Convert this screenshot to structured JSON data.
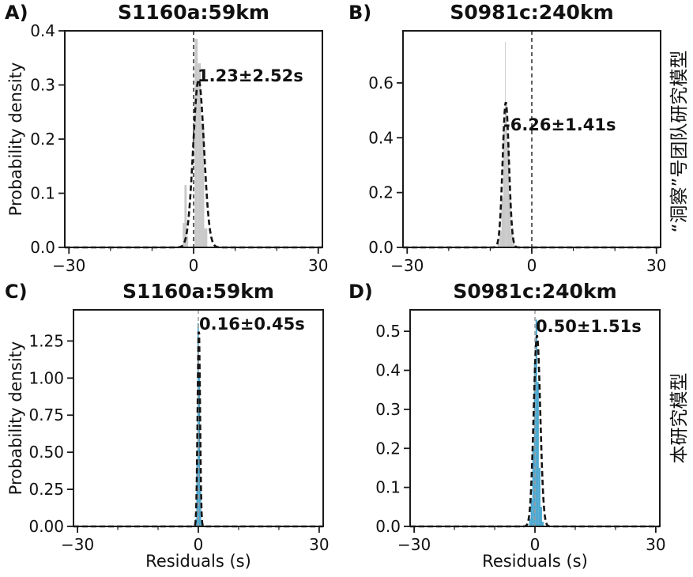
{
  "chart_data": {
    "type": "bar",
    "subtype": "histogram-grid-2x2",
    "xlabel": "Residuals (s)",
    "ylabel": "Probability density",
    "right_label_top": "“洞察”号团队研究模型",
    "right_label_bottom": "本研究模型",
    "colors": {
      "gray_fill": "#c9c9c9",
      "gray_spike": "#cdcdcd",
      "blue_fill": "#49a6ce",
      "curve": "#151515",
      "spine": "#1a1a1a",
      "vline_dark": "#2b2b2b",
      "vline_gray": "#9a9a9a"
    },
    "panels": [
      {
        "key": "A",
        "letter": "A)",
        "title": "S1160a:59km",
        "annotation": "1.23±2.52s",
        "mean": 1.23,
        "std": 2.52,
        "fill": "#c9c9c9",
        "vline_color": "#2b2b2b",
        "xlim": [
          -31,
          31
        ],
        "ylim": [
          0,
          0.4
        ],
        "xticks": [
          -30,
          0,
          30
        ],
        "xtick_labels": [
          "−30",
          "0",
          "30"
        ],
        "xminorticks": [
          -20,
          -10,
          10,
          20
        ],
        "yticks": [
          0,
          0.1,
          0.2,
          0.3,
          0.4
        ],
        "ytick_labels": [
          "0.0",
          "0.1",
          "0.2",
          "0.3",
          "0.4"
        ],
        "bars": [
          [
            -2.6,
            -2.2,
            0.045
          ],
          [
            -2.2,
            -1.65,
            0.115
          ],
          [
            -1.65,
            -1.3,
            0.02
          ],
          [
            0.25,
            1.0,
            0.385
          ],
          [
            1.0,
            1.75,
            0.34
          ],
          [
            1.75,
            2.55,
            0.23
          ],
          [
            2.55,
            3.3,
            0.035
          ]
        ],
        "spike": null,
        "curve": {
          "mu": 1.2,
          "sigma": 1.29,
          "peak": 0.31
        }
      },
      {
        "key": "B",
        "letter": "B)",
        "title": "S0981c:240km",
        "annotation": "-6.26±1.41s",
        "mean": -6.26,
        "std": 1.41,
        "fill": "#c9c9c9",
        "vline_color": "#2b2b2b",
        "xlim": [
          -31,
          31
        ],
        "ylim": [
          0,
          0.79
        ],
        "xticks": [
          -30,
          0,
          30
        ],
        "xtick_labels": [
          "−30",
          "0",
          "30"
        ],
        "xminorticks": [
          -20,
          -10,
          10,
          20
        ],
        "yticks": [
          0,
          0.2,
          0.4,
          0.6
        ],
        "ytick_labels": [
          "0.0",
          "0.2",
          "0.4",
          "0.6"
        ],
        "bars": [
          [
            -8.2,
            -7.75,
            0.015
          ],
          [
            -7.75,
            -7.3,
            0.06
          ],
          [
            -7.3,
            -6.85,
            0.18
          ],
          [
            -6.85,
            -6.4,
            0.42
          ],
          [
            -6.4,
            -5.95,
            0.53
          ],
          [
            -5.95,
            -5.5,
            0.38
          ],
          [
            -5.5,
            -5.05,
            0.18
          ],
          [
            -5.05,
            -4.6,
            0.06
          ],
          [
            -4.6,
            -4.15,
            0.015
          ]
        ],
        "spike": [
          -6.45,
          -6.27,
          0.75
        ],
        "curve": {
          "mu": -6.26,
          "sigma": 0.75,
          "peak": 0.53
        }
      },
      {
        "key": "C",
        "letter": "C)",
        "title": "S1160a:59km",
        "annotation": "0.16±0.45s",
        "mean": 0.16,
        "std": 0.45,
        "fill": "#49a6ce",
        "vline_color": "#9a9a9a",
        "xlim": [
          -31,
          31
        ],
        "ylim": [
          0,
          1.46
        ],
        "xticks": [
          -30,
          0,
          30
        ],
        "xtick_labels": [
          "−30",
          "0",
          "30"
        ],
        "xminorticks": [
          -20,
          -10,
          10,
          20
        ],
        "yticks": [
          0,
          0.25,
          0.5,
          0.75,
          1.0,
          1.25
        ],
        "ytick_labels": [
          "0.00",
          "0.25",
          "0.50",
          "0.75",
          "1.00",
          "1.25"
        ],
        "bars": [
          [
            -0.8,
            -0.5,
            0.05
          ],
          [
            -0.5,
            -0.22,
            0.45
          ],
          [
            -0.22,
            0.12,
            1.37
          ],
          [
            0.12,
            0.44,
            1.02
          ],
          [
            0.44,
            0.72,
            0.27
          ],
          [
            0.72,
            0.98,
            0.04
          ]
        ],
        "spike": null,
        "curve": {
          "mu": 0.12,
          "sigma": 0.295,
          "peak": 1.35
        }
      },
      {
        "key": "D",
        "letter": "D)",
        "title": "S0981c:240km",
        "annotation": "0.50±1.51s",
        "mean": 0.5,
        "std": 1.51,
        "fill": "#49a6ce",
        "vline_color": "#9a9a9a",
        "xlim": [
          -31,
          31
        ],
        "ylim": [
          0,
          0.555
        ],
        "xticks": [
          -30,
          0,
          30
        ],
        "xtick_labels": [
          "−30",
          "0",
          "30"
        ],
        "xminorticks": [
          -20,
          -10,
          10,
          20
        ],
        "yticks": [
          0,
          0.1,
          0.2,
          0.3,
          0.4,
          0.5
        ],
        "ytick_labels": [
          "0.0",
          "0.1",
          "0.2",
          "0.3",
          "0.4",
          "0.5"
        ],
        "bars": [
          [
            -1.45,
            -1.05,
            0.02
          ],
          [
            -1.05,
            -0.65,
            0.07
          ],
          [
            -0.65,
            -0.25,
            0.2
          ],
          [
            -0.25,
            0.15,
            0.42
          ],
          [
            0.15,
            0.55,
            0.53
          ],
          [
            0.55,
            0.95,
            0.37
          ],
          [
            0.95,
            1.35,
            0.15
          ],
          [
            1.35,
            1.75,
            0.05
          ],
          [
            1.75,
            2.15,
            0.012
          ]
        ],
        "spike": null,
        "curve": {
          "mu": 0.5,
          "sigma": 0.81,
          "peak": 0.49
        }
      }
    ]
  }
}
